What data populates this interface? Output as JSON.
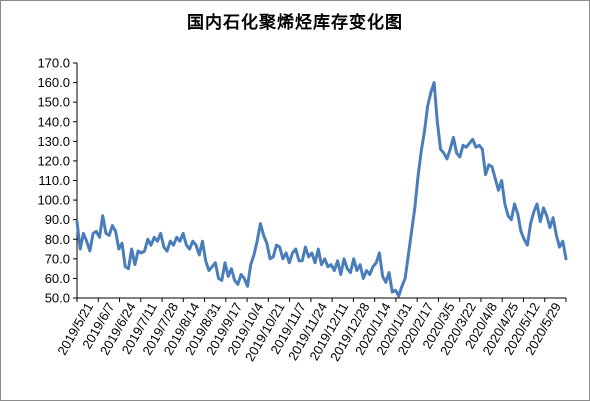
{
  "chart_data": {
    "type": "line",
    "title": "国内石化聚烯烃库存变化图",
    "xlabel": "",
    "ylabel": "",
    "ylim": [
      50,
      170
    ],
    "yticks": [
      50,
      60,
      70,
      80,
      90,
      100,
      110,
      120,
      130,
      140,
      150,
      160,
      170
    ],
    "ytick_labels": [
      "50.0",
      "60.0",
      "70.0",
      "80.0",
      "90.0",
      "100.0",
      "110.0",
      "120.0",
      "130.0",
      "140.0",
      "150.0",
      "160.0",
      "170.0"
    ],
    "xtick_labels": [
      "2019/5/21",
      "2019/6/7",
      "2019/6/24",
      "2019/7/11",
      "2019/7/28",
      "2019/8/14",
      "2019/8/31",
      "2019/9/17",
      "2019/10/4",
      "2019/10/21",
      "2019/11/7",
      "2019/11/24",
      "2019/12/11",
      "2019/12/28",
      "2020/1/14",
      "2020/1/31",
      "2020/2/17",
      "2020/3/5",
      "2020/3/22",
      "2020/4/8",
      "2020/4/25",
      "2020/5/12",
      "2020/5/29"
    ],
    "grid": false,
    "legend": "none",
    "line_color": "#4a7ebb",
    "series": [
      {
        "values": [
          89,
          75,
          83,
          79,
          74,
          83,
          84,
          81,
          92,
          83,
          82,
          87,
          84,
          75,
          78,
          66,
          65,
          75,
          67,
          74,
          73,
          74,
          80,
          77,
          81,
          79,
          83,
          76,
          74,
          79,
          77,
          81,
          79,
          83,
          77,
          75,
          79,
          77,
          72,
          79,
          69,
          64,
          66,
          68,
          60,
          59,
          68,
          61,
          65,
          59,
          57,
          62,
          60,
          56,
          67,
          72,
          79,
          88,
          82,
          78,
          70,
          71,
          77,
          76,
          70,
          73,
          68,
          73,
          75,
          69,
          69,
          76,
          71,
          73,
          68,
          75,
          67,
          70,
          66,
          67,
          64,
          69,
          62,
          70,
          65,
          63,
          70,
          64,
          67,
          60,
          64,
          62,
          66,
          68,
          73,
          61,
          58,
          63,
          53,
          54,
          51,
          56,
          60,
          72,
          84,
          96,
          112,
          125,
          135,
          148,
          155,
          160,
          140,
          126,
          124,
          121,
          126,
          132,
          124,
          122,
          128,
          127,
          129,
          131,
          127,
          128,
          126,
          113,
          118,
          117,
          111,
          105,
          110,
          98,
          92,
          90,
          98,
          93,
          84,
          80,
          77,
          88,
          94,
          98,
          89,
          96,
          92,
          86,
          91,
          82,
          76,
          79,
          70
        ]
      }
    ]
  }
}
